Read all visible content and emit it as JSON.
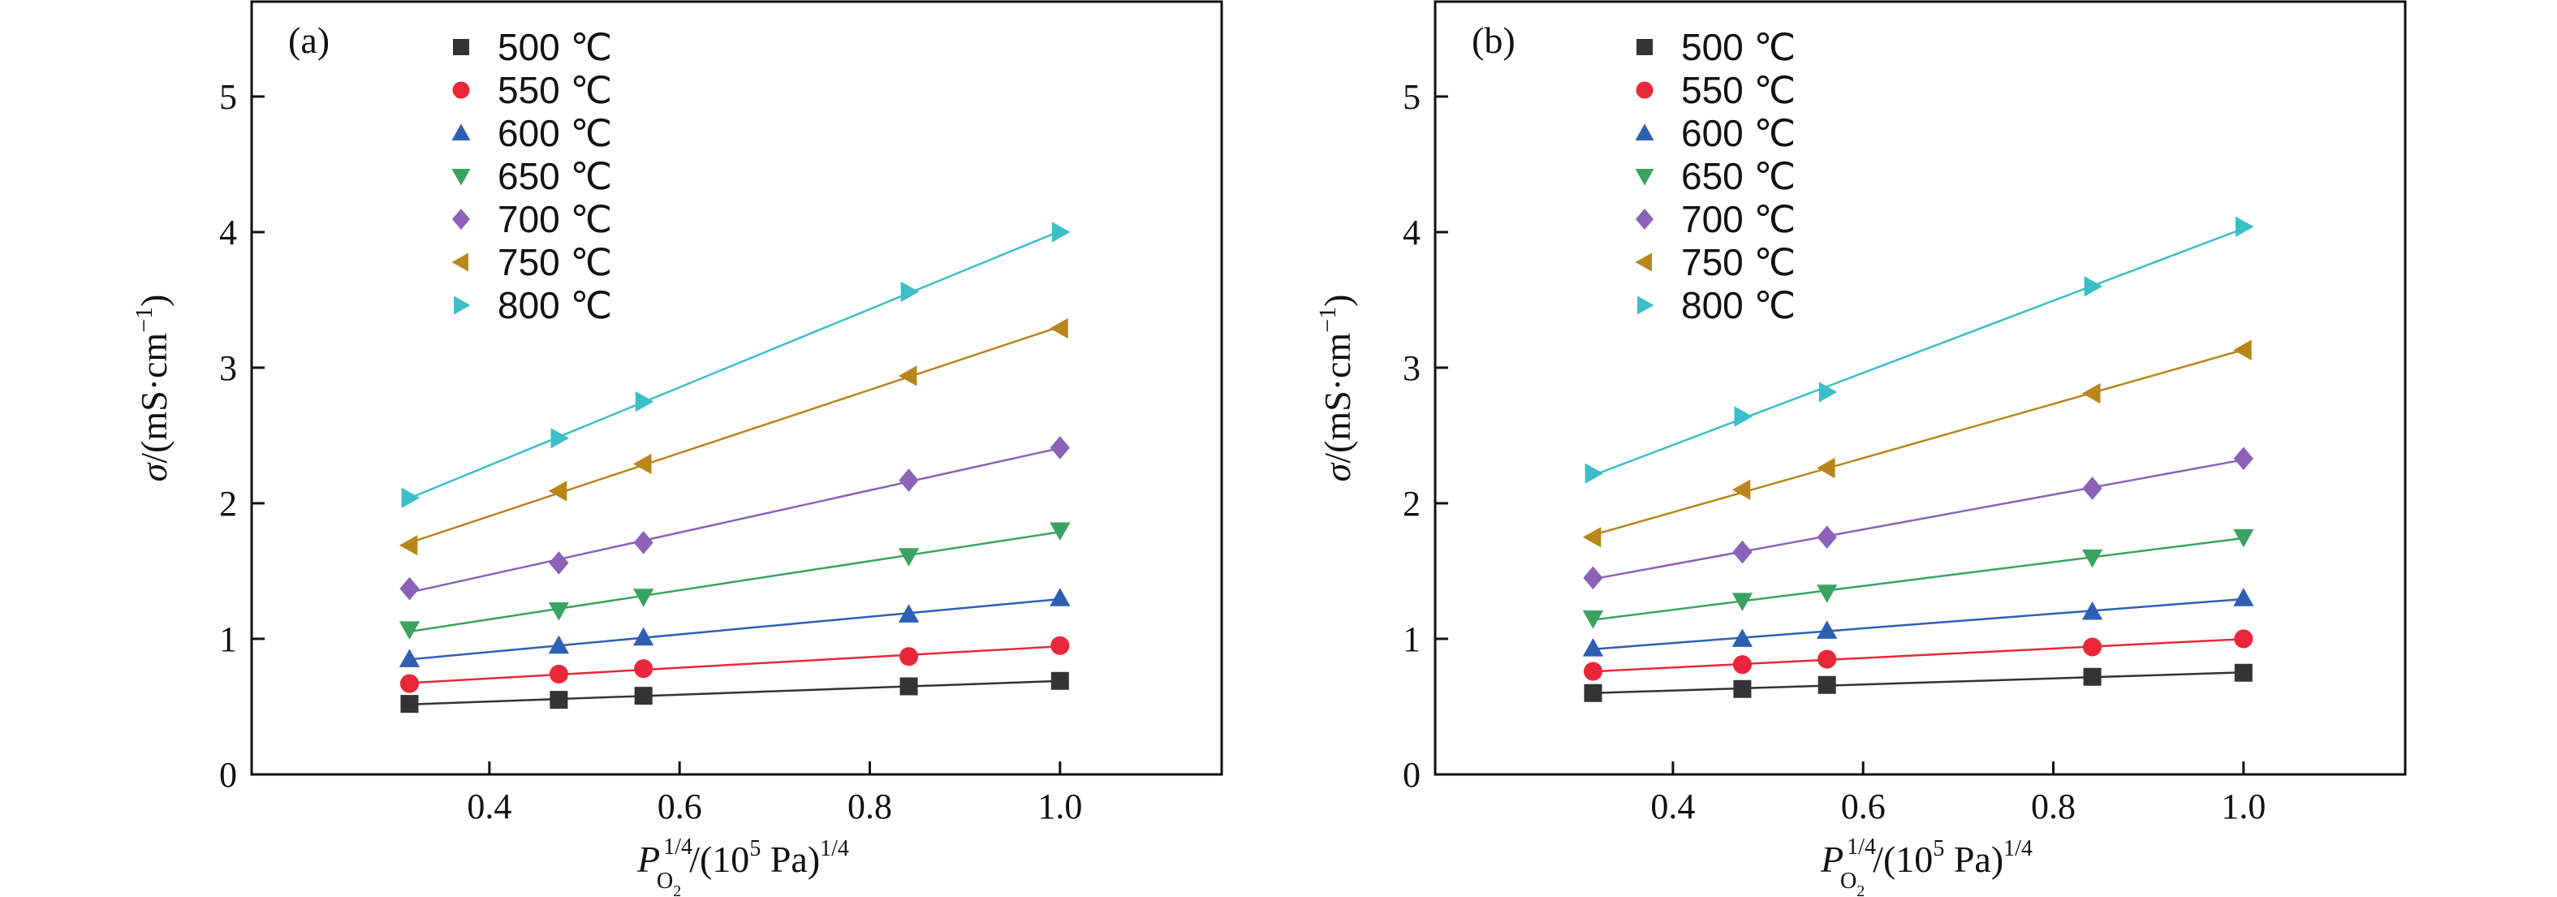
{
  "chart_data": [
    {
      "type": "scatter",
      "panel_label": "(a)",
      "xlabel": {
        "main": "P",
        "sup": "1/4",
        "sub": "O",
        "sub2": "2",
        "rest": "/(10",
        "rest_sup": "5",
        "rest2": " Pa)",
        "rest2_sup": "1/4"
      },
      "ylabel": {
        "sigma": "σ",
        "text": "/(mS·cm",
        "sup": "−1",
        "close": ")"
      },
      "xlim": [
        0.15,
        1.17
      ],
      "ylim": [
        0,
        5.7
      ],
      "xticks": [
        "0.4",
        "0.6",
        "0.8",
        "1.0"
      ],
      "xtick_values": [
        0.4,
        0.6,
        0.8,
        1.0
      ],
      "yticks": [
        "0",
        "1",
        "2",
        "3",
        "4",
        "5"
      ],
      "ytick_values": [
        0,
        1,
        2,
        3,
        4,
        5
      ],
      "legend_position": "top-left",
      "grid": false,
      "x": [
        0.316,
        0.473,
        0.562,
        0.841,
        1.0
      ],
      "series": [
        {
          "name": "500 ℃",
          "marker": "square",
          "color": "#333333",
          "values": [
            0.52,
            0.55,
            0.58,
            0.65,
            0.69
          ]
        },
        {
          "name": "550 ℃",
          "marker": "circle",
          "color": "#e8283a",
          "values": [
            0.67,
            0.74,
            0.78,
            0.87,
            0.95
          ]
        },
        {
          "name": "600 ℃",
          "marker": "triangle-up",
          "color": "#2e5fb3",
          "values": [
            0.85,
            0.95,
            1.01,
            1.18,
            1.3
          ]
        },
        {
          "name": "650 ℃",
          "marker": "triangle-down",
          "color": "#3aa35f",
          "values": [
            1.07,
            1.21,
            1.31,
            1.61,
            1.8
          ]
        },
        {
          "name": "700 ℃",
          "marker": "diamond",
          "color": "#8c62b8",
          "values": [
            1.37,
            1.56,
            1.71,
            2.17,
            2.41
          ]
        },
        {
          "name": "750 ℃",
          "marker": "triangle-left",
          "color": "#b8861b",
          "values": [
            1.69,
            2.09,
            2.29,
            2.94,
            3.29
          ]
        },
        {
          "name": "800 ℃",
          "marker": "triangle-right",
          "color": "#3cbec9",
          "values": [
            2.04,
            2.48,
            2.75,
            3.56,
            4.0
          ]
        }
      ]
    },
    {
      "type": "scatter",
      "panel_label": "(b)",
      "xlabel": {
        "main": "P",
        "sup": "1/4",
        "sub": "O",
        "sub2": "2",
        "rest": "/(10",
        "rest_sup": "5",
        "rest2": " Pa)",
        "rest2_sup": "1/4"
      },
      "ylabel": {
        "sigma": "σ",
        "text": "/(mS·cm",
        "sup": "−1",
        "close": ")"
      },
      "xlim": [
        0.15,
        1.17
      ],
      "ylim": [
        0,
        5.7
      ],
      "xticks": [
        "0.4",
        "0.6",
        "0.8",
        "1.0"
      ],
      "xtick_values": [
        0.4,
        0.6,
        0.8,
        1.0
      ],
      "yticks": [
        "0",
        "1",
        "2",
        "3",
        "4",
        "5"
      ],
      "ytick_values": [
        0,
        1,
        2,
        3,
        4,
        5
      ],
      "legend_position": "top-left",
      "grid": false,
      "x": [
        0.316,
        0.473,
        0.562,
        0.841,
        1.0
      ],
      "series": [
        {
          "name": "500 ℃",
          "marker": "square",
          "color": "#333333",
          "values": [
            0.6,
            0.63,
            0.66,
            0.72,
            0.75
          ]
        },
        {
          "name": "550 ℃",
          "marker": "circle",
          "color": "#e8283a",
          "values": [
            0.76,
            0.81,
            0.85,
            0.94,
            1.0
          ]
        },
        {
          "name": "600 ℃",
          "marker": "triangle-up",
          "color": "#2e5fb3",
          "values": [
            0.93,
            1.0,
            1.06,
            1.2,
            1.3
          ]
        },
        {
          "name": "650 ℃",
          "marker": "triangle-down",
          "color": "#3aa35f",
          "values": [
            1.15,
            1.28,
            1.34,
            1.6,
            1.75
          ]
        },
        {
          "name": "700 ℃",
          "marker": "diamond",
          "color": "#8c62b8",
          "values": [
            1.45,
            1.64,
            1.75,
            2.11,
            2.33
          ]
        },
        {
          "name": "750 ℃",
          "marker": "triangle-left",
          "color": "#b8861b",
          "values": [
            1.75,
            2.1,
            2.26,
            2.81,
            3.13
          ]
        },
        {
          "name": "800 ℃",
          "marker": "triangle-right",
          "color": "#3cbec9",
          "values": [
            2.22,
            2.64,
            2.82,
            3.6,
            4.04
          ]
        }
      ]
    }
  ]
}
